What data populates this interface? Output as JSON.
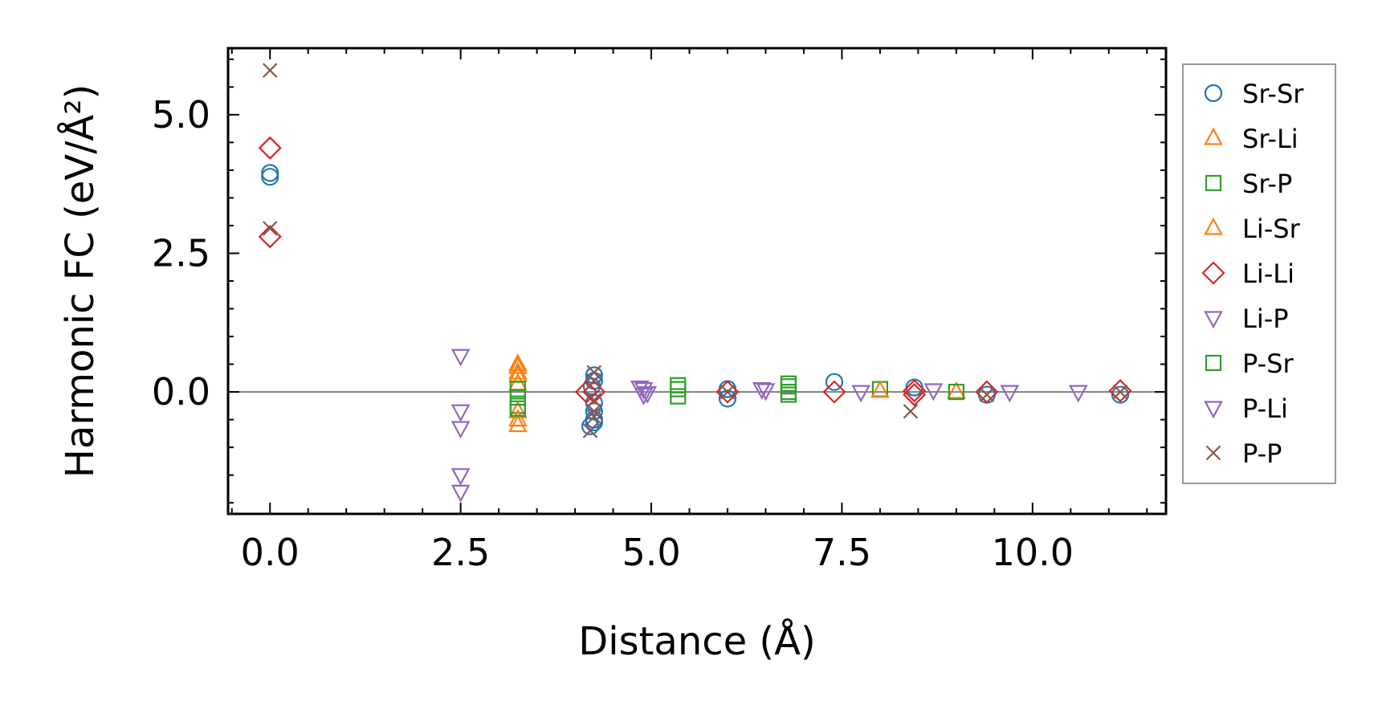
{
  "chart_data": {
    "type": "scatter",
    "xlabel": "Distance (Å)",
    "ylabel": "Harmonic FC (eV/Å²)",
    "xlim": [
      -0.55,
      11.75
    ],
    "ylim": [
      -2.2,
      6.2
    ],
    "x_ticks": [
      0.0,
      2.5,
      5.0,
      7.5,
      10.0
    ],
    "x_tick_labels": [
      "0.0",
      "2.5",
      "5.0",
      "7.5",
      "10.0"
    ],
    "y_ticks": [
      0.0,
      2.5,
      5.0
    ],
    "y_tick_labels": [
      "0.0",
      "2.5",
      "5.0"
    ],
    "grid": false,
    "zero_line": true,
    "legend_position": "outside-right",
    "series": [
      {
        "name": "Sr-Sr",
        "marker": "circle",
        "color": "#1f77b4",
        "points": [
          [
            0,
            3.95
          ],
          [
            0,
            3.88
          ],
          [
            4.25,
            0.3
          ],
          [
            4.25,
            0.2
          ],
          [
            4.22,
            0.1
          ],
          [
            4.25,
            -0.2
          ],
          [
            4.25,
            -0.35
          ],
          [
            4.25,
            -0.5
          ],
          [
            4.2,
            -0.62
          ],
          [
            4.25,
            -0.55
          ],
          [
            6.0,
            0.05
          ],
          [
            6.0,
            -0.12
          ],
          [
            7.4,
            0.18
          ],
          [
            8.45,
            0.08
          ],
          [
            9.4,
            -0.05
          ],
          [
            11.15,
            -0.05
          ]
        ]
      },
      {
        "name": "Sr-Li",
        "marker": "triangle-up",
        "color": "#ff7f0e",
        "points": [
          [
            3.25,
            0.45
          ],
          [
            3.25,
            0.3
          ],
          [
            3.25,
            0.15
          ],
          [
            3.25,
            -0.35
          ],
          [
            3.25,
            -0.6
          ],
          [
            9.0,
            0.0
          ]
        ]
      },
      {
        "name": "Sr-P",
        "marker": "square",
        "color": "#2ca02c",
        "points": [
          [
            3.25,
            0.05
          ],
          [
            3.25,
            -0.1
          ],
          [
            3.25,
            -0.25
          ],
          [
            5.35,
            0.12
          ],
          [
            5.35,
            -0.08
          ],
          [
            6.8,
            0.1
          ],
          [
            6.8,
            -0.05
          ],
          [
            8.0,
            0.05
          ],
          [
            9.0,
            0.0
          ]
        ]
      },
      {
        "name": "Li-Sr",
        "marker": "triangle-up",
        "color": "#ff7f0e",
        "points": [
          [
            3.25,
            0.5
          ],
          [
            3.25,
            0.35
          ],
          [
            3.25,
            -0.5
          ],
          [
            8.0,
            0.02
          ]
        ]
      },
      {
        "name": "Li-Li",
        "marker": "diamond",
        "color": "#d62728",
        "points": [
          [
            0,
            4.4
          ],
          [
            0,
            2.8
          ],
          [
            4.15,
            0.0
          ],
          [
            4.25,
            0.0
          ],
          [
            6.0,
            0.0
          ],
          [
            7.4,
            0.0
          ],
          [
            8.45,
            0.02
          ],
          [
            8.45,
            -0.05
          ],
          [
            9.4,
            0.0
          ],
          [
            11.15,
            0.02
          ]
        ]
      },
      {
        "name": "Li-P",
        "marker": "triangle-down",
        "color": "#9467bd",
        "points": [
          [
            2.5,
            0.65
          ],
          [
            2.5,
            -0.35
          ],
          [
            2.5,
            -0.65
          ],
          [
            2.5,
            -1.5
          ],
          [
            2.5,
            -1.8
          ],
          [
            4.9,
            0.05
          ],
          [
            4.9,
            -0.05
          ],
          [
            6.5,
            0.03
          ],
          [
            7.75,
            0.0
          ],
          [
            8.7,
            0.03
          ],
          [
            9.7,
            0.0
          ],
          [
            10.6,
            0.0
          ]
        ]
      },
      {
        "name": "P-Sr",
        "marker": "square",
        "color": "#2ca02c",
        "points": [
          [
            3.25,
            -0.3
          ],
          [
            5.35,
            0.05
          ],
          [
            6.8,
            0.15
          ],
          [
            6.8,
            0.0
          ]
        ]
      },
      {
        "name": "P-Li",
        "marker": "triangle-down",
        "color": "#9467bd",
        "points": [
          [
            4.85,
            0.08
          ],
          [
            4.95,
            -0.02
          ],
          [
            6.45,
            0.05
          ]
        ]
      },
      {
        "name": "P-P",
        "marker": "x",
        "color": "#8c564b",
        "points": [
          [
            0,
            5.8
          ],
          [
            0,
            2.95
          ],
          [
            4.25,
            0.35
          ],
          [
            4.25,
            0.2
          ],
          [
            4.25,
            -0.15
          ],
          [
            4.25,
            -0.35
          ],
          [
            4.25,
            -0.45
          ],
          [
            4.2,
            -0.7
          ],
          [
            6.0,
            0.0
          ],
          [
            8.4,
            -0.35
          ],
          [
            9.4,
            -0.05
          ],
          [
            11.15,
            0.0
          ]
        ]
      }
    ]
  }
}
